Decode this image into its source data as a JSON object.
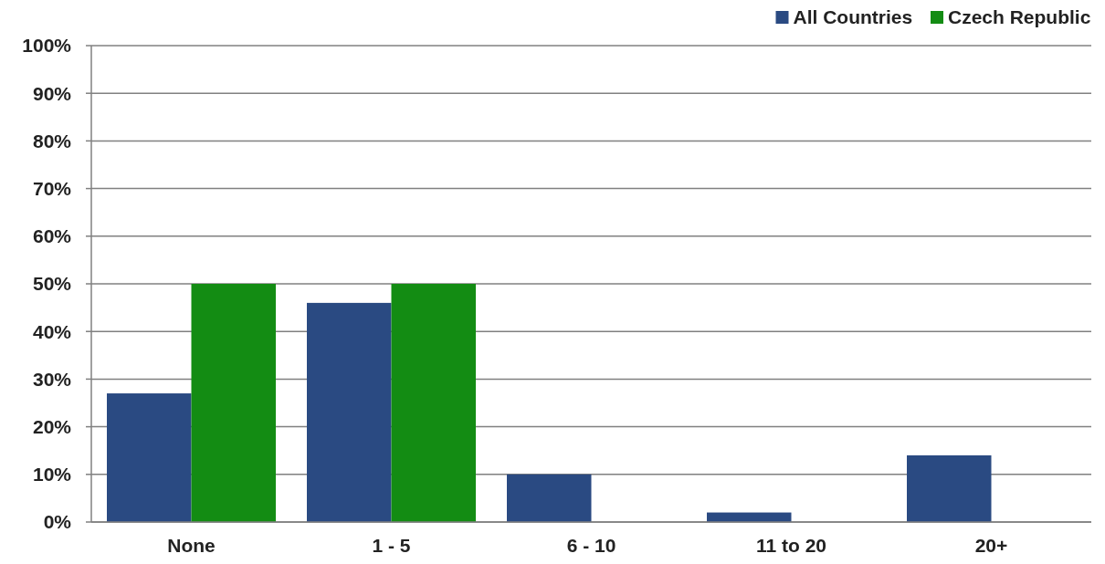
{
  "chart_data": {
    "type": "bar",
    "categories": [
      "None",
      "1 - 5",
      "6 - 10",
      "11 to 20",
      "20+"
    ],
    "series": [
      {
        "name": "All Countries",
        "color": "#2a4a82",
        "values": [
          27,
          46,
          10,
          2,
          14
        ]
      },
      {
        "name": "Czech Republic",
        "color": "#138c13",
        "values": [
          50,
          50,
          0,
          0,
          0
        ]
      }
    ],
    "ylim": [
      0,
      100
    ],
    "yticks": [
      {
        "value": 0,
        "label": "0%"
      },
      {
        "value": 10,
        "label": "10%"
      },
      {
        "value": 20,
        "label": "20%"
      },
      {
        "value": 30,
        "label": "30%"
      },
      {
        "value": 40,
        "label": "40%"
      },
      {
        "value": 50,
        "label": "50%"
      },
      {
        "value": 60,
        "label": "60%"
      },
      {
        "value": 70,
        "label": "70%"
      },
      {
        "value": 80,
        "label": "80%"
      },
      {
        "value": 90,
        "label": "90%"
      },
      {
        "value": 100,
        "label": "100%"
      }
    ],
    "grid": "y",
    "legend": "top right"
  }
}
